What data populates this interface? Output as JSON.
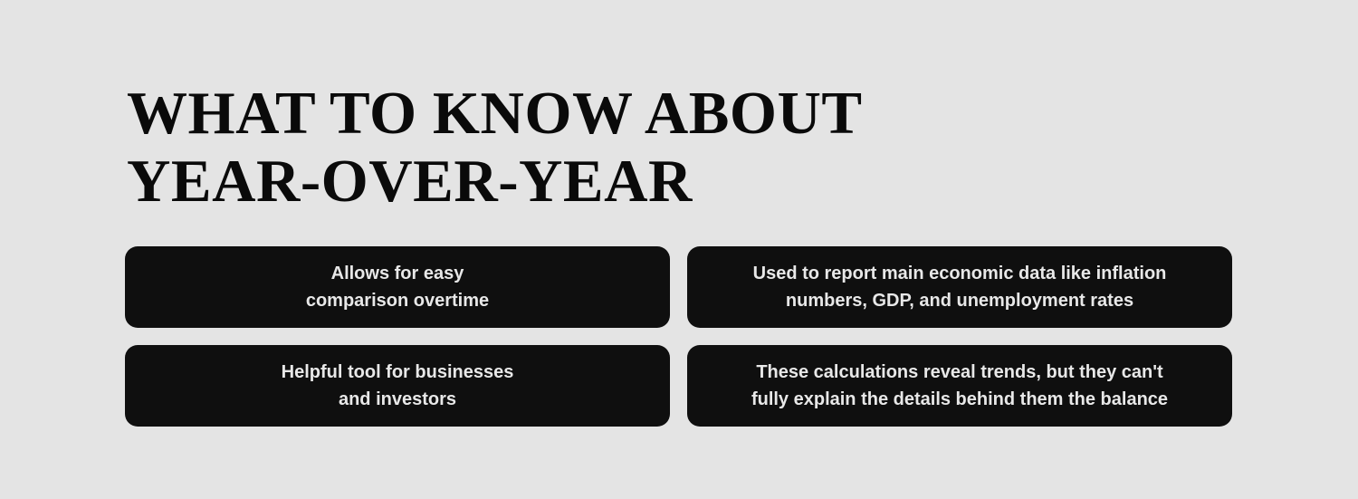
{
  "title": {
    "line1": "WHAT TO KNOW ABOUT",
    "line2": "YEAR-OVER-YEAR"
  },
  "cards": [
    {
      "line1": "Allows for easy",
      "line2": "comparison overtime"
    },
    {
      "line1": "Used to report main economic data like inflation",
      "line2": "numbers, GDP, and unemployment rates"
    },
    {
      "line1": "Helpful tool for businesses",
      "line2": "and investors"
    },
    {
      "line1": "These calculations reveal trends, but they can't",
      "line2": "fully explain the details behind them the balance"
    }
  ],
  "colors": {
    "background": "#e4e4e4",
    "card": "#0f0f0f",
    "card_text": "#e8e8e8",
    "title": "#0a0a0a"
  }
}
